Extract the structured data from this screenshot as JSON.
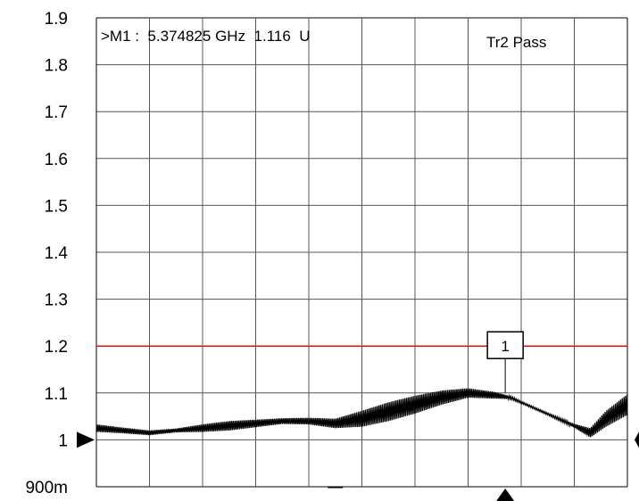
{
  "chart_data": {
    "type": "line",
    "title": "",
    "xlabel": "",
    "ylabel": "",
    "ylim": [
      0.9,
      1.9
    ],
    "y_ticks": [
      "1.9",
      "1.8",
      "1.7",
      "1.6",
      "1.5",
      "1.4",
      "1.3",
      "1.2",
      "1.1",
      "1",
      "900m"
    ],
    "grid": true,
    "x_divisions": 10,
    "limit_line": {
      "value": 1.2,
      "color": "#e01010"
    },
    "series": [
      {
        "color": "#000000",
        "x": [
          0.0,
          0.05,
          0.1,
          0.15,
          0.2,
          0.25,
          0.3,
          0.35,
          0.4,
          0.45,
          0.5,
          0.55,
          0.6,
          0.65,
          0.7,
          0.75,
          0.78,
          0.8,
          0.85,
          0.9,
          0.93,
          0.96,
          1.0
        ],
        "y": [
          1.025,
          1.02,
          1.015,
          1.02,
          1.025,
          1.03,
          1.035,
          1.04,
          1.04,
          1.035,
          1.045,
          1.06,
          1.075,
          1.09,
          1.1,
          1.095,
          1.09,
          1.08,
          1.055,
          1.03,
          1.015,
          1.045,
          1.075
        ],
        "ripple": [
          0.008,
          0.006,
          0.005,
          0.004,
          0.008,
          0.01,
          0.008,
          0.006,
          0.007,
          0.01,
          0.017,
          0.02,
          0.019,
          0.015,
          0.01,
          0.007,
          0.003,
          0.002,
          0.002,
          0.004,
          0.01,
          0.017,
          0.022
        ]
      }
    ],
    "marker": {
      "label_box": "1",
      "readout": ">M1 :  5.374825 GHz  1.116  U",
      "x": 0.77,
      "y": 1.1
    },
    "trace_status": "Tr2 Pass",
    "reference_level": 1.0,
    "bottom_dash": "—"
  }
}
